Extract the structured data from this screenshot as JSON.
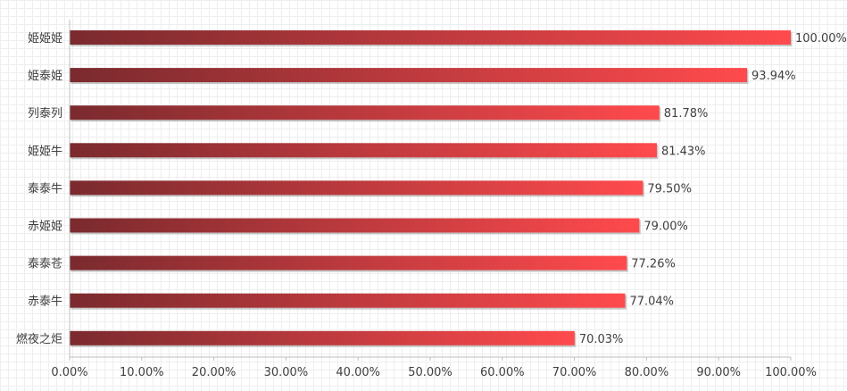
{
  "chart_data": {
    "type": "bar",
    "orientation": "horizontal",
    "categories": [
      "姫姫姫",
      "姫泰姫",
      "列泰列",
      "姫姫牛",
      "泰泰牛",
      "赤姫姫",
      "泰泰苍",
      "赤泰牛",
      "燃夜之炬"
    ],
    "values": [
      100.0,
      93.94,
      81.78,
      81.43,
      79.5,
      79.0,
      77.26,
      77.04,
      70.03
    ],
    "value_labels": [
      "100.00%",
      "93.94%",
      "81.78%",
      "81.43%",
      "79.50%",
      "79.00%",
      "77.26%",
      "77.04%",
      "70.03%"
    ],
    "xlim": [
      0,
      100
    ],
    "xticks": [
      0,
      10,
      20,
      30,
      40,
      50,
      60,
      70,
      80,
      90,
      100
    ],
    "xtick_labels": [
      "0.00%",
      "10.00%",
      "20.00%",
      "30.00%",
      "40.00%",
      "50.00%",
      "60.00%",
      "70.00%",
      "80.00%",
      "90.00%",
      "100.00%"
    ],
    "title": "",
    "xlabel": "",
    "ylabel": "",
    "grid": true,
    "colors": {
      "bar_start": "#7a2a2e",
      "bar_end": "#ff4a4d",
      "text": "#404040",
      "axis": "#bfbfbf",
      "shadow": "#9a9a9a"
    }
  }
}
